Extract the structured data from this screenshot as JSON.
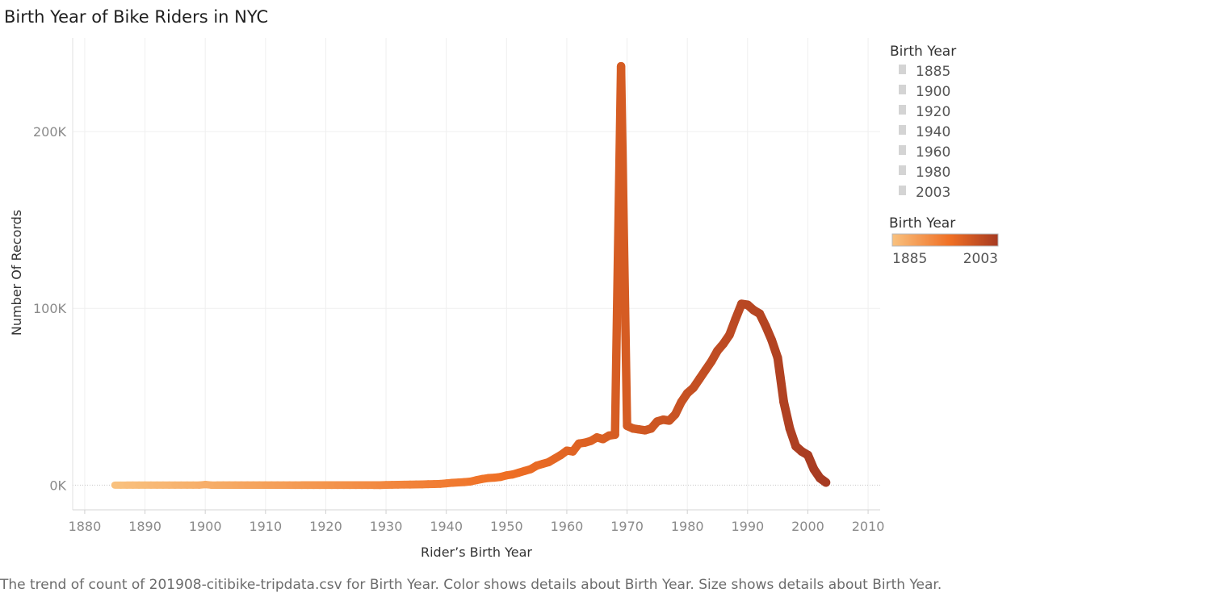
{
  "title": "Birth Year of Bike Riders in NYC",
  "caption": "The trend of count of 201908-citibike-tripdata.csv for Birth Year.  Color shows details about Birth Year.  Size shows details about Birth Year.",
  "legend": {
    "size_title": "Birth Year",
    "size_items": [
      "1885",
      "1900",
      "1920",
      "1940",
      "1960",
      "1980",
      "2003"
    ],
    "color_title": "Birth Year",
    "color_min_label": "1885",
    "color_max_label": "2003",
    "color_stops": [
      "#f9c17e",
      "#ef6f24",
      "#a63a22"
    ]
  },
  "chart_data": {
    "type": "line",
    "title": "Birth Year of Bike Riders in NYC",
    "xlabel": "Rider’s Birth Year",
    "ylabel": "Number Of Records",
    "xlim": [
      1878,
      2012
    ],
    "ylim": [
      -14000,
      253000
    ],
    "x_ticks": [
      1880,
      1890,
      1900,
      1910,
      1920,
      1930,
      1940,
      1950,
      1960,
      1970,
      1980,
      1990,
      2000,
      2010
    ],
    "x_tick_labels": [
      "1880",
      "1890",
      "1900",
      "1910",
      "1920",
      "1930",
      "1940",
      "1950",
      "1960",
      "1970",
      "1980",
      "1990",
      "2000",
      "2010"
    ],
    "y_ticks": [
      0,
      100000,
      200000
    ],
    "y_tick_labels": [
      "0K",
      "100K",
      "200K"
    ],
    "grid": true,
    "series": [
      {
        "x": [
          1885,
          1886,
          1887,
          1888,
          1889,
          1890,
          1891,
          1892,
          1893,
          1894,
          1895,
          1896,
          1897,
          1898,
          1899,
          1900,
          1901,
          1902,
          1903,
          1904,
          1905,
          1906,
          1907,
          1908,
          1909,
          1910,
          1911,
          1912,
          1913,
          1914,
          1915,
          1916,
          1917,
          1918,
          1919,
          1920,
          1921,
          1922,
          1923,
          1924,
          1925,
          1926,
          1927,
          1928,
          1929,
          1930,
          1931,
          1932,
          1933,
          1934,
          1935,
          1936,
          1937,
          1938,
          1939,
          1940,
          1941,
          1942,
          1943,
          1944,
          1945,
          1946,
          1947,
          1948,
          1949,
          1950,
          1951,
          1952,
          1953,
          1954,
          1955,
          1956,
          1957,
          1958,
          1959,
          1960,
          1961,
          1962,
          1963,
          1964,
          1965,
          1966,
          1967,
          1968,
          1969,
          1970,
          1971,
          1972,
          1973,
          1974,
          1975,
          1976,
          1977,
          1978,
          1979,
          1980,
          1981,
          1982,
          1983,
          1984,
          1985,
          1986,
          1987,
          1988,
          1989,
          1990,
          1991,
          1992,
          1993,
          1994,
          1995,
          1996,
          1997,
          1998,
          1999,
          2000,
          2001,
          2002,
          2003
        ],
        "y": [
          0,
          0,
          0,
          0,
          0,
          0,
          0,
          0,
          0,
          0,
          0,
          0,
          0,
          0,
          0,
          300,
          0,
          0,
          0,
          0,
          0,
          0,
          0,
          0,
          0,
          0,
          0,
          0,
          0,
          0,
          0,
          0,
          0,
          0,
          0,
          0,
          0,
          0,
          0,
          0,
          0,
          0,
          0,
          0,
          0,
          100,
          150,
          200,
          250,
          300,
          350,
          400,
          500,
          600,
          700,
          1000,
          1300,
          1500,
          1700,
          2000,
          2800,
          3500,
          4000,
          4200,
          4600,
          5500,
          6000,
          7000,
          8000,
          9000,
          11000,
          12000,
          13000,
          15000,
          17000,
          19500,
          19000,
          23500,
          24000,
          25000,
          27000,
          26000,
          28000,
          28500,
          237000,
          33500,
          32000,
          31500,
          31000,
          32000,
          36000,
          37000,
          36500,
          40000,
          47000,
          52000,
          55000,
          60000,
          65000,
          70000,
          76000,
          80000,
          85000,
          94000,
          102500,
          102000,
          99000,
          97000,
          90000,
          82000,
          72000,
          47000,
          32000,
          22000,
          19000,
          17000,
          9000,
          4000,
          1500
        ]
      }
    ]
  }
}
